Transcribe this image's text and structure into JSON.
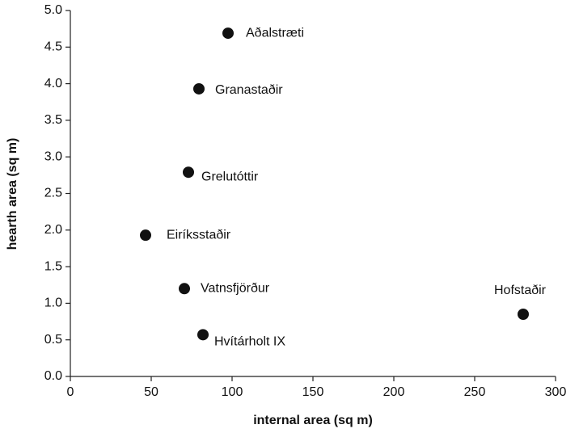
{
  "chart_data": {
    "type": "scatter",
    "xlabel": "internal area (sq m)",
    "ylabel": "hearth area (sq m)",
    "x": [
      97.5,
      79.5,
      73,
      46.5,
      70.5,
      82,
      280
    ],
    "values": [
      4.69,
      3.93,
      2.79,
      1.93,
      1.2,
      0.57,
      0.85
    ],
    "point_labels": [
      "Aðalstræti",
      "Granastaðir",
      "Grelutóttir",
      "Eiríksstaðir",
      "Vatnsfjörður",
      "Hvítárholt IX",
      "Hofstaðir"
    ],
    "color": "#111111",
    "xlim": [
      0,
      300
    ],
    "xticks": [
      0,
      50,
      100,
      150,
      200,
      250,
      300
    ],
    "ylim": [
      0,
      5
    ],
    "yticks": [
      {
        "value": 0,
        "label": "0.0"
      },
      {
        "value": 0.5,
        "label": "0.5"
      },
      {
        "value": 1,
        "label": "1.0"
      },
      {
        "value": 1.5,
        "label": "1.5"
      },
      {
        "value": 2,
        "label": "2.0"
      },
      {
        "value": 2.5,
        "label": "2.5"
      },
      {
        "value": 3,
        "label": "3.0"
      },
      {
        "value": 3.5,
        "label": "3.5"
      },
      {
        "value": 4,
        "label": "4.0"
      },
      {
        "value": 4.5,
        "label": "4.5"
      },
      {
        "value": 5,
        "label": "5.0"
      }
    ]
  }
}
